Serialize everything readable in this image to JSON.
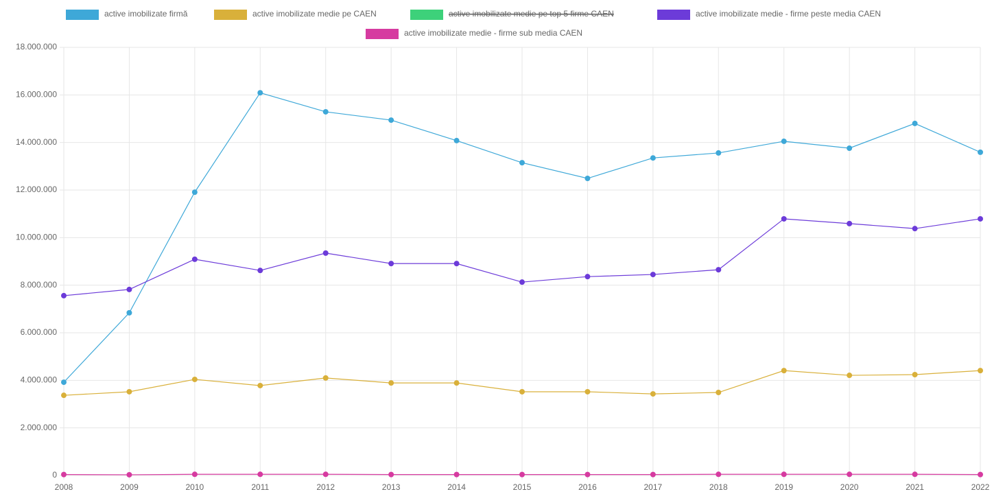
{
  "chart_data": {
    "type": "line",
    "categories": [
      "2008",
      "2009",
      "2010",
      "2011",
      "2012",
      "2013",
      "2014",
      "2015",
      "2016",
      "2017",
      "2018",
      "2019",
      "2020",
      "2021",
      "2022"
    ],
    "series": [
      {
        "name": "active imobilizate firmă",
        "color": "#3ea8d8",
        "values": [
          3920000,
          6840000,
          11910000,
          16090000,
          15290000,
          14940000,
          14080000,
          13150000,
          12490000,
          13350000,
          13560000,
          14050000,
          13760000,
          14800000,
          13590000
        ]
      },
      {
        "name": "active imobilizate medie pe CAEN",
        "color": "#d9b03a",
        "values": [
          3370000,
          3520000,
          4040000,
          3780000,
          4100000,
          3890000,
          3890000,
          3520000,
          3520000,
          3430000,
          3490000,
          4410000,
          4210000,
          4240000,
          4410000
        ]
      },
      {
        "name": "active imobilizate medie pe top 5 firme CAEN",
        "color": "#3dd17a",
        "hidden": true,
        "values": [
          null,
          null,
          null,
          null,
          null,
          null,
          null,
          null,
          null,
          null,
          null,
          null,
          null,
          null,
          null
        ]
      },
      {
        "name": "active imobilizate medie - firme peste media CAEN",
        "color": "#6c3bd9",
        "values": [
          7560000,
          7820000,
          9090000,
          8620000,
          9350000,
          8910000,
          8910000,
          8130000,
          8360000,
          8450000,
          8650000,
          10790000,
          10590000,
          10380000,
          10790000
        ]
      },
      {
        "name": "active imobilizate medie - firme sub media CAEN",
        "color": "#d63ba0",
        "values": [
          40000,
          30000,
          50000,
          50000,
          50000,
          40000,
          40000,
          40000,
          40000,
          40000,
          50000,
          50000,
          50000,
          50000,
          40000
        ]
      }
    ],
    "ylim": [
      0,
      18000000
    ],
    "yticks": [
      0,
      {
        "value": 2000000,
        "label": "2.000.000"
      },
      {
        "value": 4000000,
        "label": "4.000.000"
      },
      {
        "value": 6000000,
        "label": "6.000.000"
      },
      {
        "value": 8000000,
        "label": "8.000.000"
      },
      {
        "value": 10000000,
        "label": "10.000.000"
      },
      {
        "value": 12000000,
        "label": "12.000.000"
      },
      {
        "value": 14000000,
        "label": "14.000.000"
      },
      {
        "value": 16000000,
        "label": "16.000.000"
      },
      {
        "value": 18000000,
        "label": "18.000.000"
      }
    ],
    "grid": true,
    "legend": "top"
  }
}
